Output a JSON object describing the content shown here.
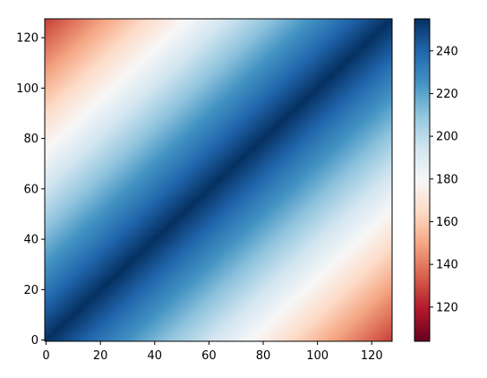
{
  "chart_data": {
    "type": "heatmap",
    "title": "",
    "xlabel": "",
    "ylabel": "",
    "x_range": [
      0,
      127
    ],
    "y_range": [
      0,
      127
    ],
    "y_origin": "lower",
    "grid": false,
    "description_of_values": "value = 255 - |x - y|",
    "value_formula": {
      "max": 255,
      "decrease_per_unit_distance_from_diagonal": 1
    },
    "colormap": "RdBu",
    "color_range": [
      104,
      255
    ],
    "x_ticks": [
      "0",
      "20",
      "40",
      "60",
      "80",
      "100",
      "120"
    ],
    "y_ticks": [
      "0",
      "20",
      "40",
      "60",
      "80",
      "100",
      "120"
    ],
    "colorbar": {
      "ticks": [
        "120",
        "140",
        "160",
        "180",
        "200",
        "220",
        "240"
      ],
      "placement": "right"
    }
  }
}
